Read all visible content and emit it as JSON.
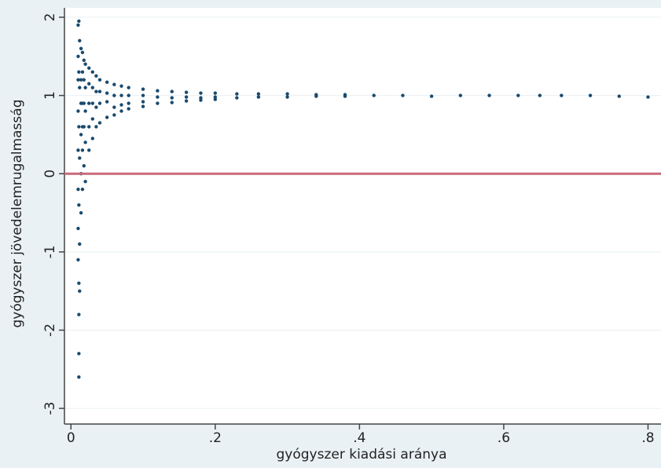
{
  "chart_data": {
    "type": "scatter",
    "x_label": "gyógyszer kiadási aránya",
    "y_label": "gyógyszer jövedelemrugalmasság",
    "color": "#1a4a6e",
    "hline": 0,
    "hline_color": "#c9697a",
    "grid": true,
    "xlim": [
      -0.009,
      0.818
    ],
    "ylim": [
      -3.2,
      2.12
    ],
    "xticks": [
      0,
      {
        "value": 0.2,
        "label": ".2"
      },
      {
        "value": 0.4,
        "label": ".4"
      },
      {
        "value": 0.6,
        "label": ".6"
      },
      {
        "value": 0.8,
        "label": ".8"
      }
    ],
    "yticks": [
      2,
      1,
      0,
      -1,
      -2,
      -3
    ],
    "x": [
      0.01,
      0.01,
      0.01,
      0.01,
      0.01,
      0.01,
      0.01,
      0.01,
      0.011,
      0.011,
      0.011,
      0.011,
      0.011,
      0.011,
      0.011,
      0.011,
      0.012,
      0.012,
      0.012,
      0.012,
      0.012,
      0.014,
      0.014,
      0.014,
      0.014,
      0.014,
      0.014,
      0.016,
      0.016,
      0.016,
      0.016,
      0.016,
      0.016,
      0.018,
      0.018,
      0.018,
      0.018,
      0.018,
      0.02,
      0.02,
      0.02,
      0.02,
      0.02,
      0.025,
      0.025,
      0.025,
      0.025,
      0.025,
      0.03,
      0.03,
      0.03,
      0.03,
      0.03,
      0.035,
      0.035,
      0.035,
      0.035,
      0.04,
      0.04,
      0.04,
      0.04,
      0.05,
      0.05,
      0.05,
      0.05,
      0.06,
      0.06,
      0.06,
      0.06,
      0.07,
      0.07,
      0.07,
      0.07,
      0.08,
      0.08,
      0.08,
      0.08,
      0.1,
      0.1,
      0.1,
      0.1,
      0.12,
      0.12,
      0.12,
      0.14,
      0.14,
      0.14,
      0.16,
      0.16,
      0.16,
      0.18,
      0.18,
      0.18,
      0.2,
      0.2,
      0.2,
      0.23,
      0.23,
      0.26,
      0.26,
      0.3,
      0.3,
      0.34,
      0.34,
      0.38,
      0.38,
      0.42,
      0.46,
      0.5,
      0.54,
      0.58,
      0.62,
      0.65,
      0.68,
      0.72,
      0.76,
      0.8
    ],
    "values": [
      1.9,
      1.5,
      1.2,
      0.8,
      0.3,
      -0.2,
      -0.7,
      -1.1,
      -2.6,
      -2.3,
      -1.8,
      1.95,
      1.3,
      0.6,
      -0.4,
      -1.4,
      1.7,
      1.1,
      0.2,
      -0.9,
      -1.5,
      1.6,
      1.2,
      0.9,
      0.5,
      0,
      -0.5,
      1.55,
      1.3,
      0.9,
      0.6,
      0.3,
      -0.2,
      1.45,
      1.2,
      0.9,
      0.6,
      0.1,
      1.4,
      1.1,
      0.8,
      0.4,
      -0.1,
      1.35,
      1.15,
      0.9,
      0.6,
      0.3,
      1.3,
      1.1,
      0.9,
      0.7,
      0.45,
      1.25,
      1.05,
      0.85,
      0.6,
      1.2,
      1.05,
      0.9,
      0.65,
      1.17,
      1.03,
      0.92,
      0.72,
      1.14,
      1.0,
      0.85,
      0.75,
      1.12,
      1.0,
      0.88,
      0.8,
      1.1,
      1.0,
      0.9,
      0.83,
      1.08,
      1.0,
      0.92,
      0.86,
      1.06,
      0.98,
      0.9,
      1.05,
      0.97,
      0.91,
      1.04,
      0.98,
      0.93,
      1.03,
      0.97,
      0.94,
      1.03,
      0.98,
      0.95,
      1.02,
      0.97,
      1.02,
      0.98,
      1.02,
      0.98,
      1.01,
      0.99,
      1.01,
      0.99,
      1.0,
      1.0,
      0.99,
      1.0,
      1.0,
      1.0,
      1.0,
      1.0,
      1.0,
      0.99,
      0.98
    ]
  }
}
